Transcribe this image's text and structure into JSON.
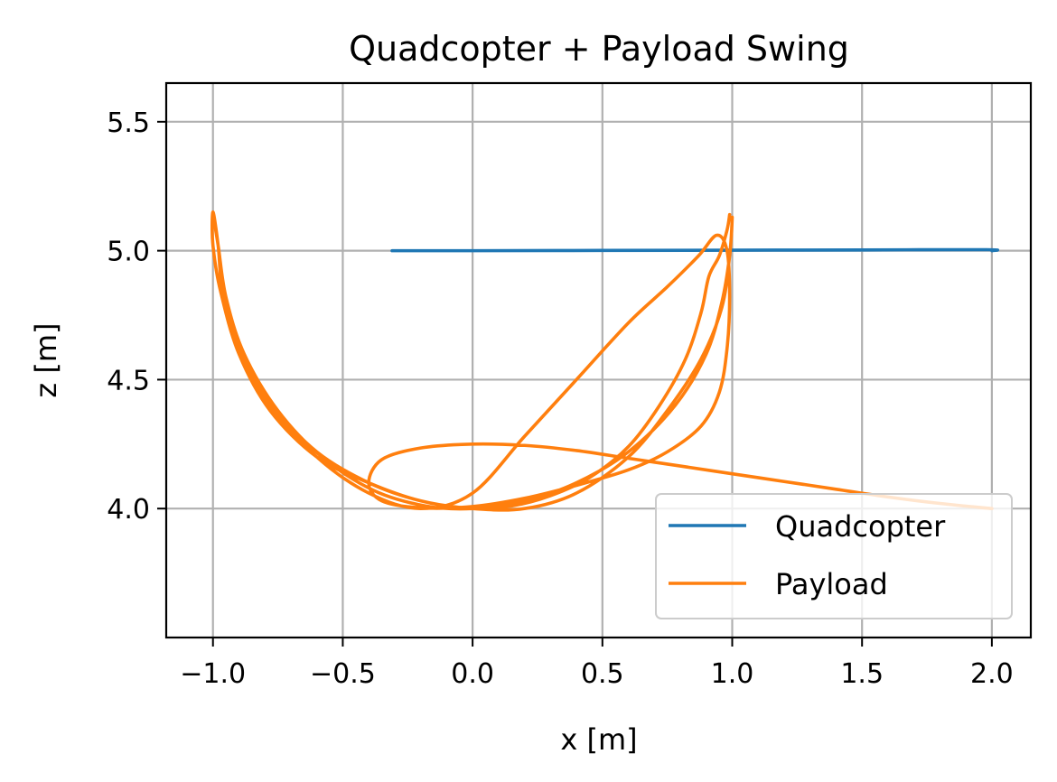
{
  "chart_data": {
    "type": "line",
    "title": "Quadcopter + Payload Swing",
    "xlabel": "x [m]",
    "ylabel": "z [m]",
    "xlim": [
      -1.18,
      2.15
    ],
    "ylim": [
      3.5,
      5.65
    ],
    "x_ticks": [
      -1.0,
      -0.5,
      0.0,
      0.5,
      1.0,
      1.5,
      2.0
    ],
    "x_tick_labels": [
      "−1.0",
      "−0.5",
      "0.0",
      "0.5",
      "1.0",
      "1.5",
      "2.0"
    ],
    "y_ticks": [
      4.0,
      4.5,
      5.0,
      5.5
    ],
    "y_tick_labels": [
      "4.0",
      "4.5",
      "5.0",
      "5.5"
    ],
    "grid": true,
    "legend_position": "lower right",
    "series": [
      {
        "name": "Quadcopter",
        "color": "#1f77b4",
        "x": [
          -0.31,
          0.0,
          0.5,
          1.0,
          1.5,
          1.98,
          2.0
        ],
        "y": [
          5.0,
          5.0,
          5.001,
          5.002,
          5.003,
          5.004,
          5.0
        ]
      },
      {
        "name": "Payload",
        "color": "#ff7f0e",
        "x": [
          2.0,
          1.8,
          1.6,
          1.4,
          1.2,
          1.0,
          0.8,
          0.6,
          0.4,
          0.2,
          0.0,
          -0.2,
          -0.35,
          -0.4,
          -0.35,
          -0.2,
          0.0,
          0.2,
          0.4,
          0.6,
          0.75,
          0.88,
          0.95,
          0.98,
          0.99,
          0.98,
          0.94,
          0.87,
          0.75,
          0.6,
          0.4,
          0.2,
          0.0,
          -0.2,
          -0.4,
          -0.6,
          -0.78,
          -0.9,
          -0.97,
          -1.0,
          -1.0,
          -0.98,
          -0.95,
          -0.88,
          -0.75,
          -0.58,
          -0.38,
          -0.18,
          0.0,
          0.2,
          0.4,
          0.6,
          0.78,
          0.9,
          0.96,
          0.99,
          1.0,
          0.99,
          0.96,
          0.88,
          0.75,
          0.6,
          0.4,
          0.2,
          0.0,
          -0.2,
          -0.4,
          -0.6,
          -0.78,
          -0.9,
          -0.97,
          -1.0,
          -1.0,
          -0.98,
          -0.96,
          -0.89,
          -0.77,
          -0.6,
          -0.4,
          -0.2,
          0.0,
          0.15,
          0.3,
          0.45,
          0.6,
          0.72,
          0.82,
          0.88,
          0.91,
          0.95,
          0.98,
          0.99
        ],
        "y": [
          4.0,
          4.02,
          4.045,
          4.075,
          4.105,
          4.135,
          4.165,
          4.195,
          4.225,
          4.245,
          4.25,
          4.235,
          4.19,
          4.1,
          4.03,
          4.003,
          4.008,
          4.04,
          4.09,
          4.15,
          4.22,
          4.32,
          4.45,
          4.62,
          4.82,
          5.0,
          5.06,
          4.98,
          4.86,
          4.72,
          4.5,
          4.28,
          4.06,
          4.0,
          4.06,
          4.2,
          4.4,
          4.62,
          4.84,
          5.02,
          5.13,
          5.02,
          4.82,
          4.6,
          4.38,
          4.2,
          4.07,
          4.01,
          4.0,
          4.03,
          4.1,
          4.22,
          4.4,
          4.6,
          4.8,
          4.98,
          5.13,
          4.98,
          4.78,
          4.58,
          4.38,
          4.2,
          4.06,
          4.0,
          4.0,
          4.03,
          4.1,
          4.2,
          4.38,
          4.6,
          4.84,
          5.02,
          5.15,
          5.02,
          4.82,
          4.6,
          4.4,
          4.22,
          4.1,
          4.03,
          4.0,
          4.01,
          4.05,
          4.12,
          4.24,
          4.4,
          4.58,
          4.76,
          4.9,
          4.98,
          5.08,
          5.14
        ]
      }
    ]
  }
}
